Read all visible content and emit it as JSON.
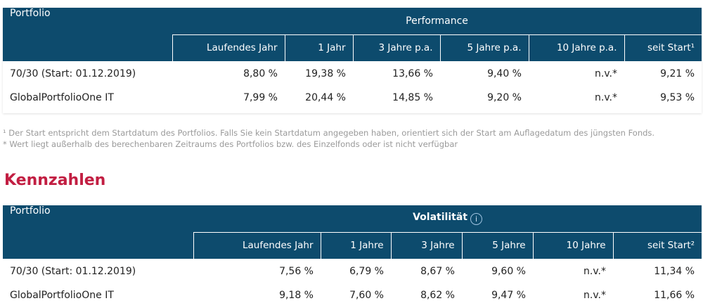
{
  "performance": {
    "portfolio_label": "Portfolio",
    "group_label": "Performance",
    "columns": [
      "Laufendes Jahr",
      "1 Jahr",
      "3 Jahre p.a.",
      "5 Jahre p.a.",
      "10 Jahre p.a.",
      "seit Start¹"
    ],
    "rows": [
      {
        "name": "70/30 (Start: 01.12.2019)",
        "values": [
          "8,80 %",
          "19,38 %",
          "13,66 %",
          "9,40 %",
          "n.v.*",
          "9,21 %"
        ]
      },
      {
        "name": "GlobalPortfolioOne IT",
        "values": [
          "7,99 %",
          "20,44 %",
          "14,85 %",
          "9,20 %",
          "n.v.*",
          "9,53 %"
        ]
      }
    ]
  },
  "footnotes": {
    "note1": "¹ Der Start entspricht dem Startdatum des Portfolios. Falls Sie kein Startdatum angegeben haben, orientiert sich der Start am Auflagedatum des jüngsten Fonds.",
    "note2": "* Wert liegt außerhalb des berechenbaren Zeitraums des Portfolios bzw. des Einzelfonds oder ist nicht verfügbar"
  },
  "kennzahlen": {
    "title": "Kennzahlen",
    "portfolio_label": "Portfolio",
    "group_label": "Volatilität",
    "info_glyph": "i",
    "columns": [
      "Laufendes Jahr",
      "1 Jahre",
      "3 Jahre",
      "5 Jahre",
      "10 Jahre",
      "seit Start²"
    ],
    "rows": [
      {
        "name": "70/30 (Start: 01.12.2019)",
        "values": [
          "7,56 %",
          "6,79 %",
          "8,67 %",
          "9,60 %",
          "n.v.*",
          "11,34 %"
        ]
      },
      {
        "name": "GlobalPortfolioOne IT",
        "values": [
          "9,18 %",
          "7,60 %",
          "8,62 %",
          "9,47 %",
          "n.v.*",
          "11,66 %"
        ]
      }
    ]
  },
  "colors": {
    "header_bg": "#0d4b6d",
    "title_red": "#c21e42",
    "note_gray": "#9a9a9a"
  }
}
